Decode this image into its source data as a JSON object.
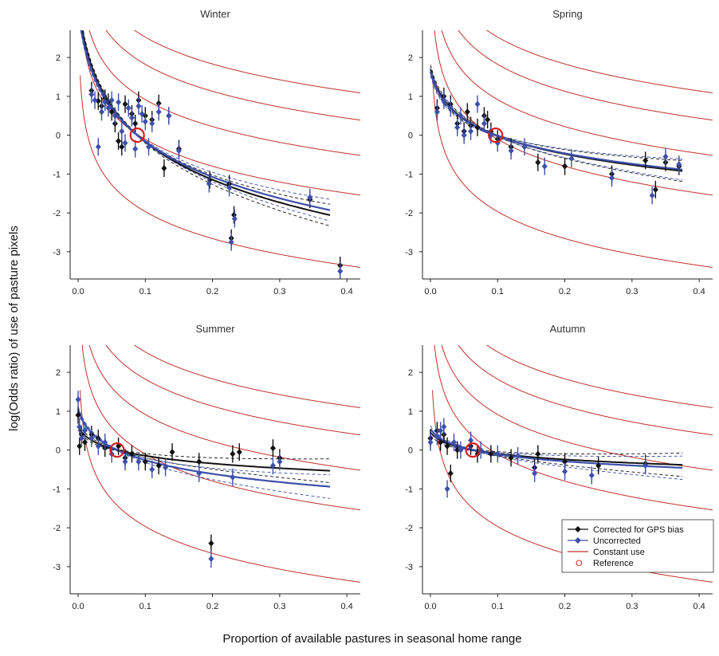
{
  "figure": {
    "ylabel": "log(Odds ratio) of use of pasture pixels",
    "xlabel": "Proportion of available pastures in seasonal home range"
  },
  "legend": {
    "items": [
      {
        "label": "Corrected for GPS bias",
        "color": "#111111",
        "kind": "point-line"
      },
      {
        "label": "Uncorrected",
        "color": "#3d4faa",
        "kind": "point-line"
      },
      {
        "label": "Constant use",
        "color": "#c0302a",
        "kind": "line"
      },
      {
        "label": "Reference",
        "color": "#d42020",
        "kind": "circle",
        "symbol": "O"
      }
    ]
  },
  "colors": {
    "corrected": "#111111",
    "uncorrected": "#3d4faa",
    "constant_use": "#c0302a",
    "reference": "#d42020"
  },
  "chart_data": [
    {
      "type": "scatter",
      "title": "Winter",
      "xlim": [
        0,
        0.42
      ],
      "ylim": [
        -3.7,
        2.7
      ],
      "xticks": [
        "0.0",
        "0.1",
        "0.2",
        "0.3",
        "0.4"
      ],
      "yticks": [
        "2",
        "1",
        "0",
        "-1",
        "-2",
        "-3"
      ],
      "reference": {
        "x": 0.088,
        "y": 0.0
      },
      "corrected_points": [
        {
          "x": 0.02,
          "y": 1.15
        },
        {
          "x": 0.03,
          "y": 0.88
        },
        {
          "x": 0.035,
          "y": 0.75
        },
        {
          "x": 0.04,
          "y": 0.95
        },
        {
          "x": 0.045,
          "y": 0.85
        },
        {
          "x": 0.05,
          "y": 0.6
        },
        {
          "x": 0.055,
          "y": 0.3
        },
        {
          "x": 0.06,
          "y": -0.15
        },
        {
          "x": 0.065,
          "y": -0.3
        },
        {
          "x": 0.07,
          "y": 0.8
        },
        {
          "x": 0.08,
          "y": 0.55
        },
        {
          "x": 0.085,
          "y": 0.3
        },
        {
          "x": 0.09,
          "y": 0.9
        },
        {
          "x": 0.1,
          "y": 0.5
        },
        {
          "x": 0.11,
          "y": 0.4
        },
        {
          "x": 0.12,
          "y": 0.82
        },
        {
          "x": 0.128,
          "y": -0.85
        },
        {
          "x": 0.135,
          "y": 0.5
        },
        {
          "x": 0.15,
          "y": -0.35
        },
        {
          "x": 0.196,
          "y": -1.15
        },
        {
          "x": 0.225,
          "y": -1.25
        },
        {
          "x": 0.228,
          "y": -2.65
        },
        {
          "x": 0.232,
          "y": -2.05
        },
        {
          "x": 0.345,
          "y": -1.65
        },
        {
          "x": 0.39,
          "y": -3.35
        }
      ],
      "uncorrected_points": [
        {
          "x": 0.02,
          "y": 1.05
        },
        {
          "x": 0.025,
          "y": 0.9
        },
        {
          "x": 0.03,
          "y": -0.3
        },
        {
          "x": 0.035,
          "y": 0.6
        },
        {
          "x": 0.04,
          "y": 0.85
        },
        {
          "x": 0.045,
          "y": 0.7
        },
        {
          "x": 0.05,
          "y": 0.9
        },
        {
          "x": 0.055,
          "y": 0.5
        },
        {
          "x": 0.06,
          "y": 0.85
        },
        {
          "x": 0.065,
          "y": 0.1
        },
        {
          "x": 0.07,
          "y": -0.2
        },
        {
          "x": 0.075,
          "y": 0.7
        },
        {
          "x": 0.08,
          "y": 0.45
        },
        {
          "x": 0.085,
          "y": -0.35
        },
        {
          "x": 0.09,
          "y": 0.75
        },
        {
          "x": 0.095,
          "y": 0.55
        },
        {
          "x": 0.1,
          "y": 0.35
        },
        {
          "x": 0.105,
          "y": -0.3
        },
        {
          "x": 0.11,
          "y": 0.3
        },
        {
          "x": 0.12,
          "y": 0.6
        },
        {
          "x": 0.135,
          "y": 0.5
        },
        {
          "x": 0.15,
          "y": -0.4
        },
        {
          "x": 0.195,
          "y": -1.25
        },
        {
          "x": 0.225,
          "y": -1.35
        },
        {
          "x": 0.228,
          "y": -2.75
        },
        {
          "x": 0.233,
          "y": -2.15
        },
        {
          "x": 0.345,
          "y": -1.6
        },
        {
          "x": 0.39,
          "y": -3.5
        }
      ]
    },
    {
      "type": "scatter",
      "title": "Spring",
      "xlim": [
        0,
        0.42
      ],
      "ylim": [
        -3.7,
        2.7
      ],
      "xticks": [
        "0.0",
        "0.1",
        "0.2",
        "0.3",
        "0.4"
      ],
      "yticks": [
        "2",
        "1",
        "0",
        "-1",
        "-2",
        "-3"
      ],
      "reference": {
        "x": 0.097,
        "y": 0.0
      },
      "corrected_points": [
        {
          "x": 0.01,
          "y": 0.7
        },
        {
          "x": 0.02,
          "y": 1.0
        },
        {
          "x": 0.03,
          "y": 0.8
        },
        {
          "x": 0.04,
          "y": 0.3
        },
        {
          "x": 0.05,
          "y": 0.1
        },
        {
          "x": 0.055,
          "y": 0.6
        },
        {
          "x": 0.06,
          "y": 0.25
        },
        {
          "x": 0.07,
          "y": 0.2
        },
        {
          "x": 0.08,
          "y": 0.5
        },
        {
          "x": 0.085,
          "y": 0.4
        },
        {
          "x": 0.09,
          "y": 0.1
        },
        {
          "x": 0.1,
          "y": -0.1
        },
        {
          "x": 0.12,
          "y": -0.3
        },
        {
          "x": 0.16,
          "y": -0.7
        },
        {
          "x": 0.2,
          "y": -0.8
        },
        {
          "x": 0.27,
          "y": -1.0
        },
        {
          "x": 0.32,
          "y": -0.65
        },
        {
          "x": 0.335,
          "y": -1.4
        },
        {
          "x": 0.35,
          "y": -0.7
        },
        {
          "x": 0.37,
          "y": -0.8
        }
      ],
      "uncorrected_points": [
        {
          "x": 0.01,
          "y": 0.6
        },
        {
          "x": 0.02,
          "y": 0.9
        },
        {
          "x": 0.03,
          "y": 0.7
        },
        {
          "x": 0.04,
          "y": 0.2
        },
        {
          "x": 0.045,
          "y": 0.5
        },
        {
          "x": 0.05,
          "y": 0.0
        },
        {
          "x": 0.06,
          "y": 0.1
        },
        {
          "x": 0.07,
          "y": 0.8
        },
        {
          "x": 0.08,
          "y": 0.3
        },
        {
          "x": 0.09,
          "y": 0.0
        },
        {
          "x": 0.1,
          "y": -0.2
        },
        {
          "x": 0.12,
          "y": -0.4
        },
        {
          "x": 0.14,
          "y": -0.3
        },
        {
          "x": 0.17,
          "y": -0.8
        },
        {
          "x": 0.21,
          "y": -0.6
        },
        {
          "x": 0.27,
          "y": -1.1
        },
        {
          "x": 0.33,
          "y": -1.55
        },
        {
          "x": 0.35,
          "y": -0.55
        },
        {
          "x": 0.37,
          "y": -0.75
        }
      ]
    },
    {
      "type": "scatter",
      "title": "Summer",
      "xlim": [
        0,
        0.42
      ],
      "ylim": [
        -3.7,
        2.7
      ],
      "xticks": [
        "0.0",
        "0.1",
        "0.2",
        "0.3",
        "0.4"
      ],
      "yticks": [
        "2",
        "1",
        "0",
        "-1",
        "-2",
        "-3"
      ],
      "reference": {
        "x": 0.058,
        "y": 0.0
      },
      "corrected_points": [
        {
          "x": 0.0,
          "y": 0.9
        },
        {
          "x": 0.002,
          "y": 0.1
        },
        {
          "x": 0.005,
          "y": 0.4
        },
        {
          "x": 0.01,
          "y": 0.2
        },
        {
          "x": 0.02,
          "y": 0.4
        },
        {
          "x": 0.03,
          "y": 0.3
        },
        {
          "x": 0.04,
          "y": 0.05
        },
        {
          "x": 0.06,
          "y": 0.1
        },
        {
          "x": 0.07,
          "y": -0.2
        },
        {
          "x": 0.08,
          "y": -0.1
        },
        {
          "x": 0.1,
          "y": -0.3
        },
        {
          "x": 0.12,
          "y": -0.4
        },
        {
          "x": 0.14,
          "y": -0.05
        },
        {
          "x": 0.18,
          "y": -0.3
        },
        {
          "x": 0.198,
          "y": -2.4
        },
        {
          "x": 0.23,
          "y": -0.1
        },
        {
          "x": 0.24,
          "y": -0.05
        },
        {
          "x": 0.29,
          "y": 0.05
        },
        {
          "x": 0.3,
          "y": -0.2
        }
      ],
      "uncorrected_points": [
        {
          "x": 0.0,
          "y": 1.3
        },
        {
          "x": 0.002,
          "y": 0.6
        },
        {
          "x": 0.005,
          "y": 0.3
        },
        {
          "x": 0.01,
          "y": 0.5
        },
        {
          "x": 0.02,
          "y": 0.3
        },
        {
          "x": 0.03,
          "y": 0.1
        },
        {
          "x": 0.04,
          "y": 0.2
        },
        {
          "x": 0.05,
          "y": -0.1
        },
        {
          "x": 0.07,
          "y": -0.3
        },
        {
          "x": 0.09,
          "y": -0.3
        },
        {
          "x": 0.11,
          "y": -0.5
        },
        {
          "x": 0.13,
          "y": -0.45
        },
        {
          "x": 0.18,
          "y": -0.6
        },
        {
          "x": 0.198,
          "y": -2.8
        },
        {
          "x": 0.23,
          "y": -0.7
        },
        {
          "x": 0.29,
          "y": -0.4
        },
        {
          "x": 0.3,
          "y": -0.3
        }
      ]
    },
    {
      "type": "scatter",
      "title": "Autumn",
      "xlim": [
        0,
        0.42
      ],
      "ylim": [
        -3.7,
        2.7
      ],
      "xticks": [
        "0.0",
        "0.1",
        "0.2",
        "0.3",
        "0.4"
      ],
      "yticks": [
        "2",
        "1",
        "0",
        "-1",
        "-2",
        "-3"
      ],
      "reference": {
        "x": 0.063,
        "y": 0.0
      },
      "corrected_points": [
        {
          "x": 0.0,
          "y": 0.3
        },
        {
          "x": 0.01,
          "y": 0.5
        },
        {
          "x": 0.015,
          "y": 0.2
        },
        {
          "x": 0.02,
          "y": 0.4
        },
        {
          "x": 0.025,
          "y": 0.1
        },
        {
          "x": 0.03,
          "y": -0.6
        },
        {
          "x": 0.04,
          "y": 0.0
        },
        {
          "x": 0.06,
          "y": 0.1
        },
        {
          "x": 0.07,
          "y": -0.1
        },
        {
          "x": 0.09,
          "y": -0.1
        },
        {
          "x": 0.12,
          "y": -0.2
        },
        {
          "x": 0.155,
          "y": -0.45
        },
        {
          "x": 0.16,
          "y": -0.1
        },
        {
          "x": 0.2,
          "y": -0.3
        },
        {
          "x": 0.25,
          "y": -0.4
        },
        {
          "x": 0.32,
          "y": -0.35
        }
      ],
      "uncorrected_points": [
        {
          "x": 0.0,
          "y": 0.2
        },
        {
          "x": 0.01,
          "y": 0.35
        },
        {
          "x": 0.015,
          "y": 0.5
        },
        {
          "x": 0.02,
          "y": 0.6
        },
        {
          "x": 0.025,
          "y": -1.0
        },
        {
          "x": 0.035,
          "y": 0.2
        },
        {
          "x": 0.045,
          "y": 0.0
        },
        {
          "x": 0.06,
          "y": 0.25
        },
        {
          "x": 0.075,
          "y": 0.0
        },
        {
          "x": 0.1,
          "y": -0.1
        },
        {
          "x": 0.13,
          "y": -0.15
        },
        {
          "x": 0.155,
          "y": -0.6
        },
        {
          "x": 0.2,
          "y": -0.55
        },
        {
          "x": 0.24,
          "y": -0.65
        },
        {
          "x": 0.32,
          "y": -0.4
        }
      ]
    }
  ]
}
